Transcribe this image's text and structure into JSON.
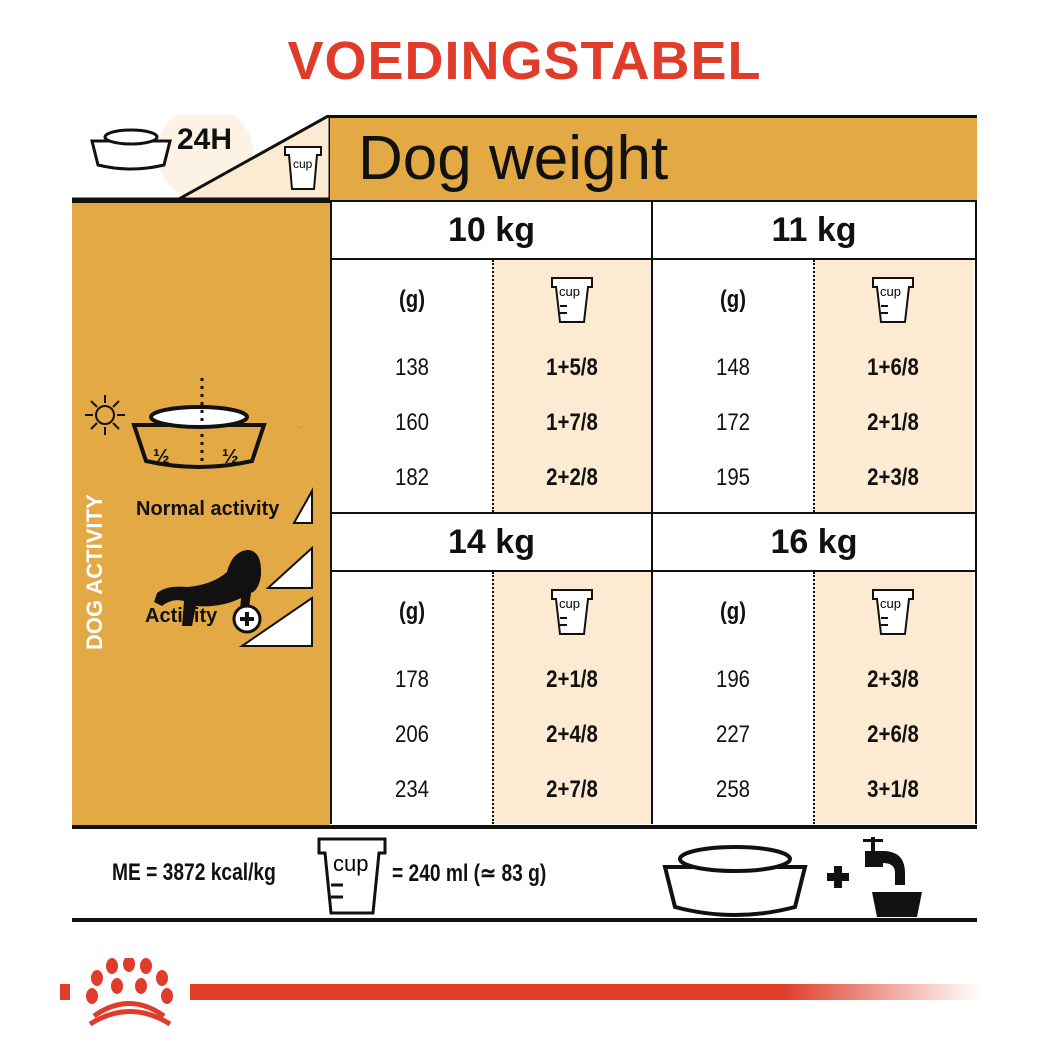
{
  "title": "VOEDINGSTABEL",
  "header": {
    "period": "24H",
    "cup_label": "cup",
    "dog_weight": "Dog weight"
  },
  "left_panel": {
    "half_left": "½",
    "half_right": "½",
    "normal_activity": "Normal activity",
    "activity": "Activity",
    "dog_activity": "DOG ACTIVITY"
  },
  "columns": {
    "grams": "(g)",
    "cup": "cup"
  },
  "blocks": [
    {
      "weight": "10 kg",
      "rows": [
        {
          "g": "138",
          "cup": "1+5/8"
        },
        {
          "g": "160",
          "cup": "1+7/8"
        },
        {
          "g": "182",
          "cup": "2+2/8"
        }
      ]
    },
    {
      "weight": "11 kg",
      "rows": [
        {
          "g": "148",
          "cup": "1+6/8"
        },
        {
          "g": "172",
          "cup": "2+1/8"
        },
        {
          "g": "195",
          "cup": "2+3/8"
        }
      ]
    },
    {
      "weight": "14 kg",
      "rows": [
        {
          "g": "178",
          "cup": "2+1/8"
        },
        {
          "g": "206",
          "cup": "2+4/8"
        },
        {
          "g": "234",
          "cup": "2+7/8"
        }
      ]
    },
    {
      "weight": "16 kg",
      "rows": [
        {
          "g": "196",
          "cup": "2+3/8"
        },
        {
          "g": "227",
          "cup": "2+6/8"
        },
        {
          "g": "258",
          "cup": "3+1/8"
        }
      ]
    }
  ],
  "footer": {
    "energy": "ME = 3872 kcal/kg",
    "cup_label": "cup",
    "cup_equiv": "= 240 ml (≃ 83 g)",
    "plus": "+"
  },
  "colors": {
    "title": "#E03C2B",
    "gold": "#E3A945",
    "cream": "#FCEBD2",
    "brand_red": "#E03C2B"
  }
}
